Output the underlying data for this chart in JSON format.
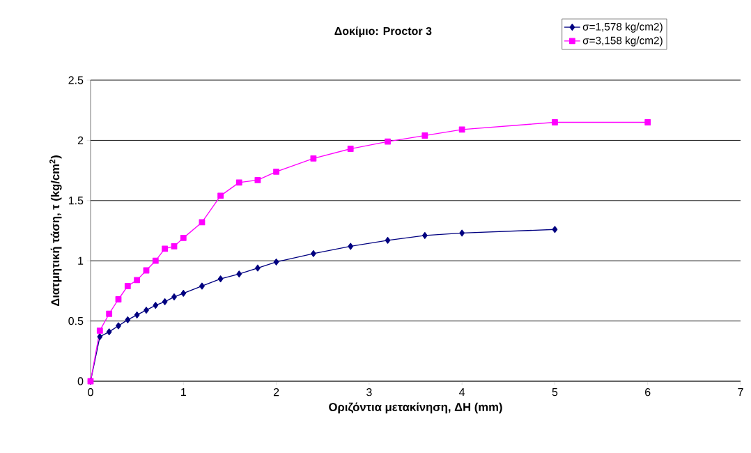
{
  "chart_data": {
    "type": "line",
    "title": "Δοκίμιο: Proctor 3",
    "xlabel": "Οριζόντια μετακίνηση, ΔΗ (mm)",
    "ylabel": "Διατμητική τάση, τ (kg/cm$^{2}$)",
    "xlim": [
      0,
      7
    ],
    "xticks": [
      0,
      1,
      2,
      3,
      4,
      5,
      6,
      7
    ],
    "ylim": [
      0,
      2.5
    ],
    "yticks": [
      0,
      0.5,
      1,
      1.5,
      2,
      2.5
    ],
    "grid": "y",
    "legend": "top right",
    "series": [
      {
        "name": "σ=1,578 kg/cm2)",
        "color": "#000080",
        "marker": "diamond",
        "x": [
          0,
          0.1,
          0.2,
          0.3,
          0.4,
          0.5,
          0.6,
          0.7,
          0.8,
          0.9,
          1.0,
          1.2,
          1.4,
          1.6,
          1.8,
          2.0,
          2.4,
          2.8,
          3.2,
          3.6,
          4.0,
          5.0
        ],
        "values": [
          0,
          0.37,
          0.41,
          0.46,
          0.51,
          0.55,
          0.59,
          0.63,
          0.66,
          0.7,
          0.73,
          0.79,
          0.85,
          0.89,
          0.94,
          0.99,
          1.06,
          1.12,
          1.17,
          1.21,
          1.23,
          1.26
        ]
      },
      {
        "name": "σ=3,158 kg/cm2)",
        "color": "#ff00ff",
        "marker": "square",
        "x": [
          0,
          0.1,
          0.2,
          0.3,
          0.4,
          0.5,
          0.6,
          0.7,
          0.8,
          0.9,
          1.0,
          1.2,
          1.4,
          1.6,
          1.8,
          2.0,
          2.4,
          2.8,
          3.2,
          3.6,
          4.0,
          5.0,
          6.0
        ],
        "values": [
          0,
          0.42,
          0.56,
          0.68,
          0.79,
          0.84,
          0.92,
          1.0,
          1.1,
          1.12,
          1.19,
          1.32,
          1.54,
          1.65,
          1.67,
          1.74,
          1.85,
          1.93,
          1.99,
          2.04,
          2.09,
          2.15,
          2.15
        ]
      }
    ]
  }
}
